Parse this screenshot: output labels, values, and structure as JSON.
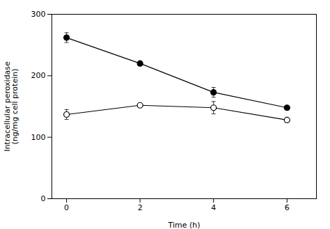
{
  "chart_data": {
    "type": "line",
    "x": [
      0,
      2,
      4,
      6
    ],
    "series": [
      {
        "values": [
          262,
          220,
          173,
          148
        ],
        "errors": [
          8,
          0,
          8,
          0
        ],
        "color": "#000000",
        "marker": "circle",
        "line_style": "solid"
      },
      {
        "values": [
          137,
          152,
          148,
          128
        ],
        "errors": [
          8,
          0,
          10,
          0
        ],
        "color": "#000000",
        "marker": "open_circle",
        "line_style": "solid"
      }
    ],
    "xlabel": "Time (h)",
    "ylabel": "Intracellular peroxidase\n(ng/mg cell protein)",
    "xlim": [
      -0.4,
      6.8
    ],
    "ylim": [
      0,
      300
    ],
    "xticks": [
      0,
      2,
      4,
      6
    ],
    "yticks": [
      0,
      100,
      200,
      300
    ],
    "grid": false
  }
}
